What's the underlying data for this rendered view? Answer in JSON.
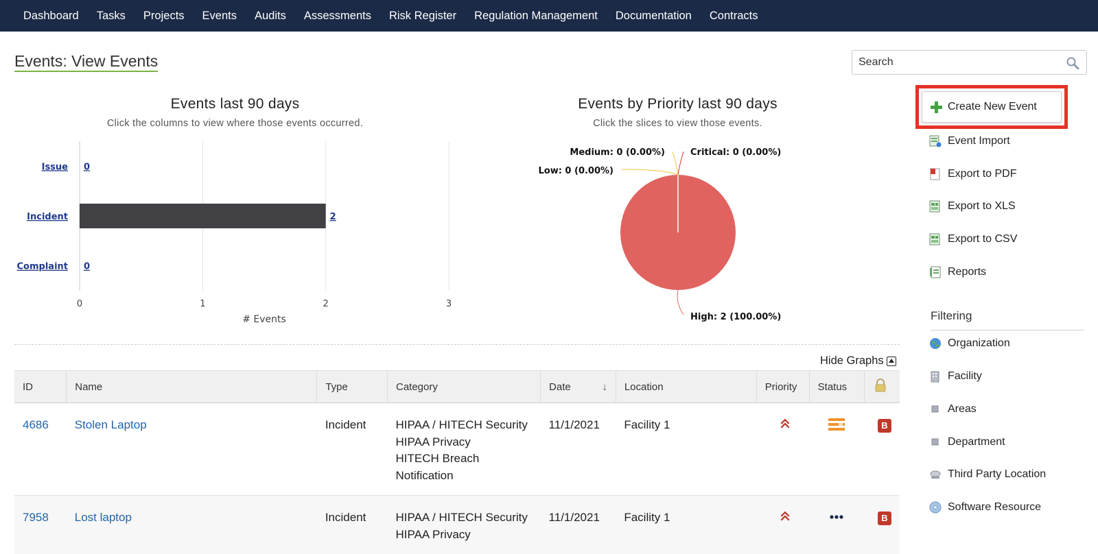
{
  "nav": {
    "items": [
      "Dashboard",
      "Tasks",
      "Projects",
      "Events",
      "Audits",
      "Assessments",
      "Risk Register",
      "Regulation Management",
      "Documentation",
      "Contracts"
    ]
  },
  "page": {
    "title": "Events: View Events"
  },
  "search": {
    "placeholder": "Search"
  },
  "chart_data": [
    {
      "type": "bar",
      "orientation": "horizontal",
      "title": "Events last 90 days",
      "subtitle": "Click the columns to view where those events occurred.",
      "categories": [
        "Issue",
        "Incident",
        "Complaint"
      ],
      "values": [
        0,
        2,
        0
      ],
      "xlabel": "# Events",
      "ylabel": "",
      "xlim": [
        0,
        3
      ],
      "xticks": [
        "0",
        "1",
        "2",
        "3"
      ],
      "bar_color": "#404045",
      "grid": true
    },
    {
      "type": "pie",
      "title": "Events by Priority last 90 days",
      "subtitle": "Click the slices to view those events.",
      "labels": [
        "Medium",
        "Critical",
        "Low",
        "High"
      ],
      "values": [
        0,
        0,
        0,
        2
      ],
      "percents": [
        "0.00%",
        "0.00%",
        "0.00%",
        "100.00%"
      ],
      "slice_labels": [
        "Medium: 0 (0.00%)",
        "Critical: 0 (0.00%)",
        "Low: 0 (0.00%)",
        "High: 2 (100.00%)"
      ],
      "colors": [
        "#f5c542",
        "#e53227",
        "#f0c040",
        "#e06360"
      ]
    }
  ],
  "hide_graphs_label": "Hide Graphs",
  "table": {
    "headers": [
      "ID",
      "Name",
      "Type",
      "Category",
      "Date",
      "Location",
      "Priority",
      "Status"
    ],
    "rows": [
      {
        "id": "4686",
        "name": "Stolen Laptop",
        "type": "Incident",
        "category": [
          "HIPAA / HITECH Security",
          "HIPAA Privacy",
          "HITECH Breach Notification"
        ],
        "date": "11/1/2021",
        "location": "Facility 1",
        "priority_icon": "high-priority-icon",
        "status_icon": "in-progress-status-icon",
        "badge": "B"
      },
      {
        "id": "7958",
        "name": "Lost laptop",
        "type": "Incident",
        "category": [
          "HIPAA / HITECH Security",
          "HIPAA Privacy"
        ],
        "date": "11/1/2021",
        "location": "Facility 1",
        "priority_icon": "high-priority-icon",
        "status_icon": "pending-status-icon",
        "badge": "B"
      }
    ]
  },
  "sidebar": {
    "create_label": "Create New Event",
    "actions": [
      "Event Import",
      "Export to PDF",
      "Export to XLS",
      "Export to CSV",
      "Reports"
    ],
    "filter_heading": "Filtering",
    "filters": [
      "Organization",
      "Facility",
      "Areas",
      "Department",
      "Third Party Location",
      "Software Resource"
    ]
  },
  "colors": {
    "nav_bg": "#1b2a47",
    "accent_underline": "#7bb343",
    "link": "#2364aa",
    "highlight_border": "#e53227"
  }
}
